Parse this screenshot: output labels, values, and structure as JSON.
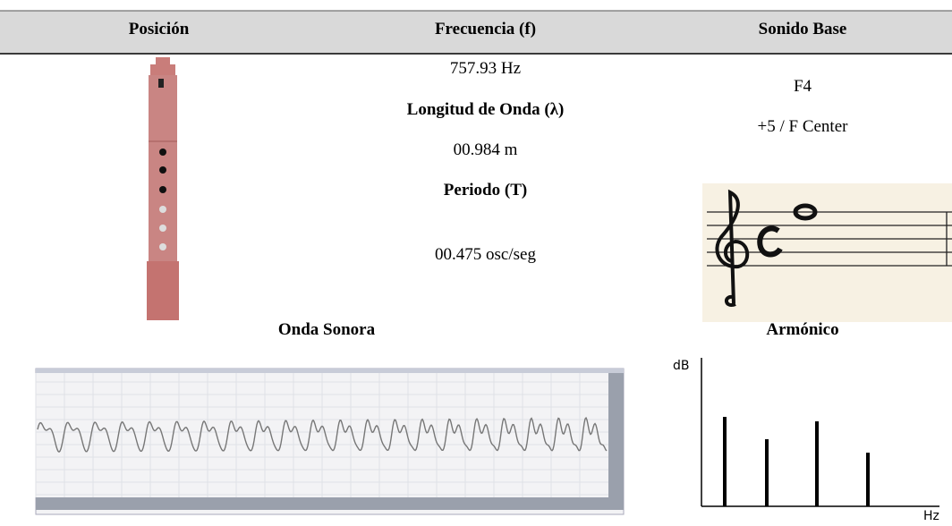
{
  "table": {
    "headers": [
      "Posición",
      "Frecuencia (f)",
      "Sonido Base"
    ],
    "frequency": "757.93 Hz",
    "wavelength_label": "Longitud de Onda (λ)",
    "wavelength": "00.984 m",
    "period_label": "Periodo (T)",
    "period": "00.475 osc/seg",
    "note": "F4",
    "tuning": "+5 / F Center"
  },
  "sections": {
    "wave_title": "Onda Sonora",
    "harmonic_title": "Armónico"
  },
  "harmonic_chart": {
    "y_label": "dB",
    "x_label": "Hz"
  }
}
